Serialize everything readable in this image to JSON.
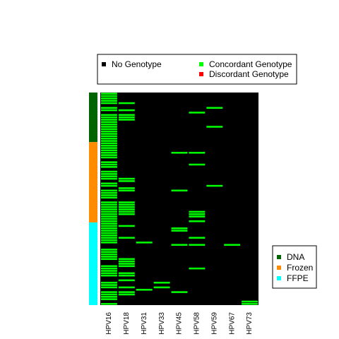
{
  "chart_data": {
    "type": "heatmap",
    "title": "",
    "xlabel": "",
    "ylabel": "",
    "columns": [
      "HPV16",
      "HPV18",
      "HPV31",
      "HPV33",
      "HPV45",
      "HPV58",
      "HPV59",
      "HPV67",
      "HPV73"
    ],
    "row_count": 90,
    "background_color": "#000000",
    "status_legend": {
      "placement": "top",
      "items": [
        {
          "label": "No Genotype",
          "color": "#000000"
        },
        {
          "label": "Concordant Genotype",
          "color": "#00ff00"
        },
        {
          "label": "Discordant Genotype",
          "color": "#ff0000"
        }
      ]
    },
    "sample_type_legend": {
      "placement": "bottom-right",
      "items": [
        {
          "label": "DNA",
          "color": "#006400"
        },
        {
          "label": "Frozen",
          "color": "#ff8c00"
        },
        {
          "label": "FFPE",
          "color": "#00ffff"
        }
      ]
    },
    "sample_groups": [
      {
        "label": "DNA",
        "start_row": 0,
        "end_row": 21
      },
      {
        "label": "Frozen",
        "start_row": 21,
        "end_row": 55
      },
      {
        "label": "FFPE",
        "start_row": 55,
        "end_row": 90
      }
    ],
    "concordant_cells": {
      "HPV16": [
        0,
        1,
        2,
        3,
        4,
        6,
        7,
        9,
        10,
        11,
        12,
        13,
        14,
        15,
        16,
        17,
        18,
        19,
        20,
        21,
        22,
        23,
        24,
        25,
        26,
        27,
        29,
        30,
        31,
        33,
        34,
        35,
        36,
        38,
        39,
        41,
        42,
        43,
        44,
        46,
        47,
        48,
        49,
        50,
        51,
        52,
        53,
        54,
        55,
        56,
        57,
        58,
        59,
        60,
        61,
        62,
        63,
        66,
        67,
        68,
        69,
        70,
        73,
        74,
        75,
        76,
        77,
        80,
        81,
        82,
        84,
        85,
        86,
        87,
        89
      ],
      "HPV18": [
        4,
        7,
        9,
        10,
        11,
        36,
        37,
        40,
        41,
        46,
        47,
        48,
        49,
        50,
        51,
        56,
        61,
        70,
        71,
        72,
        73,
        76,
        77,
        79,
        82,
        84,
        85
      ],
      "HPV31": [
        63,
        83
      ],
      "HPV33": [
        80,
        82
      ],
      "HPV45": [
        25,
        41,
        57,
        58,
        64,
        84
      ],
      "HPV58": [
        8,
        25,
        30,
        50,
        51,
        52,
        54,
        61,
        64,
        74
      ],
      "HPV59": [
        6,
        14,
        39
      ],
      "HPV67": [
        64
      ],
      "HPV73": [
        88,
        89
      ]
    },
    "discordant_cells": {}
  }
}
